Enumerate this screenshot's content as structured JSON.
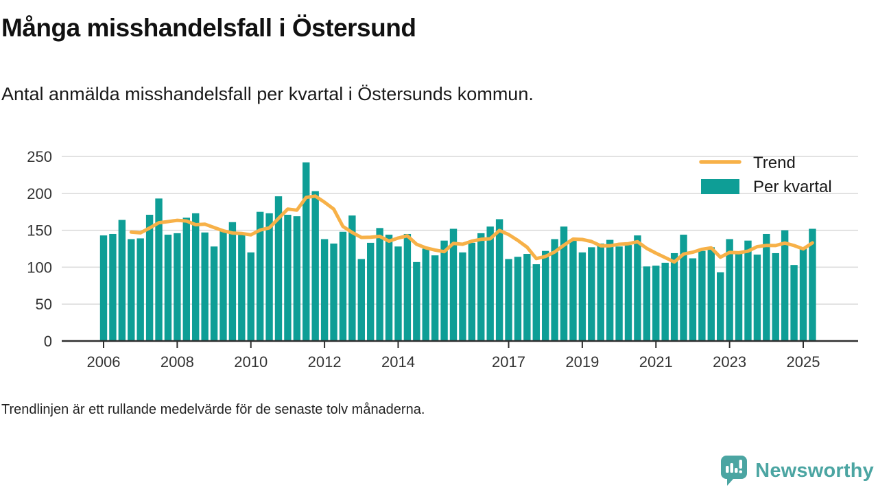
{
  "header": {
    "title": "Många misshandelsfall i Östersund",
    "subtitle": "Antal anmälda misshandelsfall per kvartal i Östersunds kommun."
  },
  "footnote": "Trendlinjen är ett rullande medelvärde för de senaste tolv månaderna.",
  "branding": {
    "name": "Newsworthy",
    "logo_icon": "speech-bubble-bar-chart-icon"
  },
  "legend": [
    {
      "label": "Trend",
      "type": "line"
    },
    {
      "label": "Per kvartal",
      "type": "bar"
    }
  ],
  "colors": {
    "bar": "#0e9e96",
    "trend": "#f7b148",
    "axis": "#2e2e2e",
    "grid": "#d8d8d8",
    "tick_text": "#333333",
    "legend_text": "#1a1a1a",
    "brand": "#4ba5a2"
  },
  "chart_data": {
    "type": "bar",
    "title": "Många misshandelsfall i Östersund",
    "subtitle": "Antal anmälda misshandelsfall per kvartal i Östersunds kommun.",
    "unit": "anmälda misshandelsfall per kvartal",
    "x_start_quarter": "2006-Q1",
    "x_end_quarter": "2025-Q2",
    "quarters_per_year": 4,
    "ylim": [
      0,
      250
    ],
    "yticks": [
      0,
      50,
      100,
      150,
      200,
      250
    ],
    "xtick_years": [
      2006,
      2008,
      2010,
      2012,
      2014,
      2017,
      2019,
      2021,
      2023,
      2025
    ],
    "grid": "horizontal",
    "legend_position": "top-right",
    "series": [
      {
        "name": "Per kvartal",
        "type": "bar",
        "values": [
          143,
          145,
          164,
          138,
          139,
          171,
          193,
          144,
          146,
          167,
          173,
          147,
          128,
          149,
          161,
          145,
          120,
          175,
          173,
          196,
          171,
          169,
          242,
          203,
          138,
          132,
          148,
          170,
          111,
          133,
          153,
          144,
          128,
          145,
          107,
          125,
          116,
          136,
          152,
          120,
          133,
          146,
          155,
          165,
          111,
          114,
          118,
          104,
          122,
          138,
          155,
          137,
          120,
          127,
          132,
          137,
          128,
          130,
          143,
          101,
          102,
          106,
          119,
          144,
          112,
          122,
          127,
          93,
          138,
          120,
          136,
          117,
          145,
          119,
          150,
          103,
          127,
          152
        ]
      },
      {
        "name": "Trend",
        "type": "line",
        "derived": "rolling_mean",
        "window_quarters": 4,
        "note": "rullande medelvärde för de senaste tolv månaderna"
      }
    ]
  }
}
